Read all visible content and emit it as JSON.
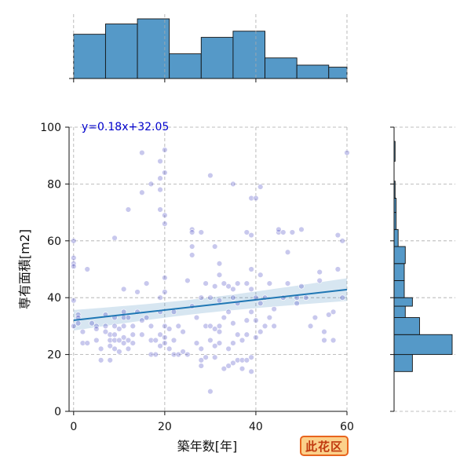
{
  "badge": "此花区",
  "chart_data": {
    "type": "scatter",
    "xlabel": "築年数[年]",
    "ylabel": "専有面積[m2]",
    "xlim": [
      -1,
      60
    ],
    "ylim": [
      0,
      100
    ],
    "x_ticks": [
      0,
      20,
      40,
      60
    ],
    "y_ticks": [
      0,
      20,
      40,
      60,
      80,
      100
    ],
    "grid": true,
    "annotation": "y=0.18x+32.05",
    "regression": {
      "slope": 0.18,
      "intercept": 32.05
    },
    "colors": {
      "points": "#3b3bbf",
      "line": "#1f77b4",
      "hist": "#5599c8",
      "annotation": "#0000cc"
    },
    "marginal_x_hist": {
      "bin_edges": [
        0,
        7,
        14,
        21,
        28,
        35,
        42,
        49,
        56,
        60
      ],
      "counts": [
        43,
        53,
        58,
        24,
        40,
        46,
        20,
        13,
        11
      ]
    },
    "marginal_y_hist": {
      "bin_edges": [
        14,
        20,
        27,
        33,
        37,
        40,
        46,
        52,
        58,
        64,
        70,
        75,
        81,
        88,
        95
      ],
      "counts": [
        18,
        57,
        25,
        11,
        18,
        10,
        10,
        11,
        4,
        2,
        2,
        1,
        0,
        1
      ]
    },
    "points": [
      [
        0,
        60
      ],
      [
        0,
        54
      ],
      [
        0,
        52
      ],
      [
        0,
        51
      ],
      [
        0,
        39
      ],
      [
        0,
        30
      ],
      [
        1,
        34
      ],
      [
        1,
        33
      ],
      [
        1,
        31
      ],
      [
        2,
        28
      ],
      [
        2,
        24
      ],
      [
        3,
        50
      ],
      [
        3,
        24
      ],
      [
        4,
        31
      ],
      [
        5,
        30
      ],
      [
        5,
        29
      ],
      [
        5,
        25
      ],
      [
        6,
        22
      ],
      [
        6,
        18
      ],
      [
        7,
        34
      ],
      [
        7,
        30
      ],
      [
        7,
        28
      ],
      [
        8,
        27
      ],
      [
        8,
        25
      ],
      [
        8,
        23
      ],
      [
        8,
        18
      ],
      [
        9,
        61
      ],
      [
        9,
        33
      ],
      [
        9,
        30
      ],
      [
        9,
        27
      ],
      [
        9,
        25
      ],
      [
        9,
        22
      ],
      [
        10,
        29
      ],
      [
        10,
        25
      ],
      [
        10,
        21
      ],
      [
        11,
        43
      ],
      [
        11,
        35
      ],
      [
        11,
        33
      ],
      [
        11,
        30
      ],
      [
        11,
        26
      ],
      [
        11,
        24
      ],
      [
        12,
        71
      ],
      [
        12,
        33
      ],
      [
        12,
        25
      ],
      [
        12,
        22
      ],
      [
        13,
        30
      ],
      [
        13,
        27
      ],
      [
        13,
        24
      ],
      [
        14,
        42
      ],
      [
        14,
        35
      ],
      [
        15,
        91
      ],
      [
        15,
        77
      ],
      [
        15,
        32
      ],
      [
        15,
        27
      ],
      [
        16,
        45
      ],
      [
        16,
        33
      ],
      [
        17,
        80
      ],
      [
        17,
        25
      ],
      [
        17,
        20
      ],
      [
        17,
        30
      ],
      [
        18,
        25
      ],
      [
        18,
        20
      ],
      [
        19,
        88
      ],
      [
        19,
        82
      ],
      [
        19,
        78
      ],
      [
        19,
        71
      ],
      [
        19,
        40
      ],
      [
        19,
        35
      ],
      [
        19,
        27
      ],
      [
        19,
        23
      ],
      [
        20,
        92
      ],
      [
        20,
        84
      ],
      [
        20,
        69
      ],
      [
        20,
        66
      ],
      [
        20,
        47
      ],
      [
        20,
        42
      ],
      [
        20,
        30
      ],
      [
        20,
        26
      ],
      [
        20,
        24
      ],
      [
        21,
        29
      ],
      [
        21,
        22
      ],
      [
        22,
        35
      ],
      [
        22,
        25
      ],
      [
        22,
        20
      ],
      [
        23,
        30
      ],
      [
        23,
        20
      ],
      [
        24,
        28
      ],
      [
        24,
        21
      ],
      [
        25,
        46
      ],
      [
        25,
        20
      ],
      [
        26,
        64
      ],
      [
        26,
        63
      ],
      [
        26,
        58
      ],
      [
        26,
        55
      ],
      [
        26,
        37
      ],
      [
        27,
        33
      ],
      [
        27,
        24
      ],
      [
        28,
        63
      ],
      [
        28,
        40
      ],
      [
        28,
        22
      ],
      [
        28,
        18
      ],
      [
        28,
        16
      ],
      [
        29,
        45
      ],
      [
        29,
        30
      ],
      [
        29,
        19
      ],
      [
        30,
        83
      ],
      [
        30,
        40
      ],
      [
        30,
        30
      ],
      [
        30,
        25
      ],
      [
        30,
        7
      ],
      [
        31,
        58
      ],
      [
        31,
        44
      ],
      [
        31,
        29
      ],
      [
        31,
        23
      ],
      [
        31,
        19
      ],
      [
        32,
        52
      ],
      [
        32,
        48
      ],
      [
        32,
        39
      ],
      [
        32,
        30
      ],
      [
        32,
        28
      ],
      [
        32,
        24
      ],
      [
        33,
        45
      ],
      [
        33,
        33
      ],
      [
        33,
        15
      ],
      [
        34,
        44
      ],
      [
        34,
        35
      ],
      [
        34,
        22
      ],
      [
        34,
        16
      ],
      [
        35,
        80
      ],
      [
        35,
        43
      ],
      [
        35,
        40
      ],
      [
        35,
        31
      ],
      [
        35,
        24
      ],
      [
        35,
        17
      ],
      [
        36,
        45
      ],
      [
        36,
        38
      ],
      [
        36,
        27
      ],
      [
        36,
        18
      ],
      [
        37,
        25
      ],
      [
        37,
        18
      ],
      [
        37,
        15
      ],
      [
        38,
        63
      ],
      [
        38,
        45
      ],
      [
        38,
        32
      ],
      [
        38,
        27
      ],
      [
        38,
        18
      ],
      [
        39,
        75
      ],
      [
        39,
        62
      ],
      [
        39,
        50
      ],
      [
        39,
        43
      ],
      [
        39,
        35
      ],
      [
        39,
        19
      ],
      [
        39,
        14
      ],
      [
        40,
        75
      ],
      [
        40,
        40
      ],
      [
        40,
        32
      ],
      [
        40,
        26
      ],
      [
        41,
        79
      ],
      [
        41,
        48
      ],
      [
        41,
        38
      ],
      [
        41,
        28
      ],
      [
        42,
        40
      ],
      [
        42,
        30
      ],
      [
        43,
        45
      ],
      [
        43,
        33
      ],
      [
        44,
        36
      ],
      [
        44,
        30
      ],
      [
        45,
        63
      ],
      [
        45,
        64
      ],
      [
        46,
        63
      ],
      [
        46,
        40
      ],
      [
        47,
        56
      ],
      [
        47,
        45
      ],
      [
        48,
        63
      ],
      [
        49,
        40
      ],
      [
        49,
        38
      ],
      [
        50,
        64
      ],
      [
        50,
        44
      ],
      [
        51,
        40
      ],
      [
        52,
        30
      ],
      [
        53,
        33
      ],
      [
        54,
        49
      ],
      [
        54,
        46
      ],
      [
        55,
        28
      ],
      [
        55,
        25
      ],
      [
        56,
        34
      ],
      [
        57,
        35
      ],
      [
        57,
        25
      ],
      [
        58,
        62
      ],
      [
        58,
        50
      ],
      [
        59,
        60
      ],
      [
        59,
        40
      ],
      [
        60,
        91
      ]
    ]
  }
}
